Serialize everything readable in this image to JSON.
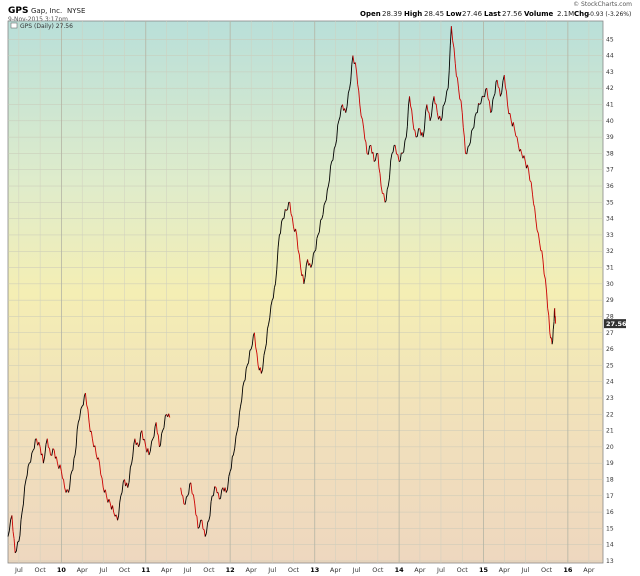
{
  "header": {
    "symbol": "GPS",
    "company": "Gap, Inc.",
    "exchange": "NYSE",
    "timestamp": "9-Nov-2015 3:17pm",
    "watermark": "© StockCharts.com",
    "open_label": "Open",
    "open_value": "28.39",
    "high_label": "High",
    "high_value": "28.45",
    "low_label": "Low",
    "low_value": "27.46",
    "last_label": "Last",
    "last_value": "27.56",
    "volume_label": "Volume",
    "volume_value": "2.1M",
    "chg_label": "Chg",
    "chg_value": "-0.93 (-3.26%)"
  },
  "legend": {
    "label": "GPS (Daily) 27.56"
  },
  "colors": {
    "up": "#000000",
    "down": "#cc0000",
    "last_tag": "#333333",
    "gradient": [
      "#b8dfd8",
      "#e8f0c8",
      "#f5ecb0",
      "#f0d8b8"
    ]
  },
  "chart_data": {
    "type": "line",
    "title": "GPS Gap, Inc. NYSE",
    "xlabel": "",
    "ylabel": "",
    "ylim": [
      13,
      46
    ],
    "y_ticks": [
      13,
      14,
      15,
      16,
      17,
      18,
      19,
      20,
      21,
      22,
      23,
      24,
      25,
      26,
      27,
      28,
      29,
      30,
      31,
      32,
      33,
      34,
      35,
      36,
      37,
      38,
      39,
      40,
      41,
      42,
      43,
      44,
      45
    ],
    "x_ticks": [
      {
        "label": "Jul",
        "date": "2009-07-01"
      },
      {
        "label": "Oct",
        "date": "2009-10-01"
      },
      {
        "label": "10",
        "date": "2010-01-01",
        "bold": true
      },
      {
        "label": "Apr",
        "date": "2010-04-01"
      },
      {
        "label": "Jul",
        "date": "2010-07-01"
      },
      {
        "label": "Oct",
        "date": "2010-10-01"
      },
      {
        "label": "11",
        "date": "2011-01-01",
        "bold": true
      },
      {
        "label": "Apr",
        "date": "2011-04-01"
      },
      {
        "label": "Jul",
        "date": "2011-07-01"
      },
      {
        "label": "Oct",
        "date": "2011-10-01"
      },
      {
        "label": "12",
        "date": "2012-01-01",
        "bold": true
      },
      {
        "label": "Apr",
        "date": "2012-04-01"
      },
      {
        "label": "Jul",
        "date": "2012-07-01"
      },
      {
        "label": "Oct",
        "date": "2012-10-01"
      },
      {
        "label": "13",
        "date": "2013-01-01",
        "bold": true
      },
      {
        "label": "Apr",
        "date": "2013-04-01"
      },
      {
        "label": "Jul",
        "date": "2013-07-01"
      },
      {
        "label": "Oct",
        "date": "2013-10-01"
      },
      {
        "label": "14",
        "date": "2014-01-01",
        "bold": true
      },
      {
        "label": "Apr",
        "date": "2014-04-01"
      },
      {
        "label": "Jul",
        "date": "2014-07-01"
      },
      {
        "label": "Oct",
        "date": "2014-10-01"
      },
      {
        "label": "15",
        "date": "2015-01-01",
        "bold": true
      },
      {
        "label": "Apr",
        "date": "2015-04-01"
      },
      {
        "label": "Jul",
        "date": "2015-07-01"
      },
      {
        "label": "Oct",
        "date": "2015-10-01"
      },
      {
        "label": "16",
        "date": "2016-01-01",
        "bold": true
      },
      {
        "label": "Apr",
        "date": "2016-04-01"
      }
    ],
    "x_start": "2009-05-15",
    "x_end": "2016-06-01",
    "last_price": 27.56,
    "series": [
      {
        "points": [
          [
            "2009-05-15",
            14.5
          ],
          [
            "2009-06-01",
            15.8
          ],
          [
            "2009-06-15",
            13.5
          ],
          [
            "2009-07-01",
            14.2
          ],
          [
            "2009-07-15",
            16.0
          ],
          [
            "2009-08-01",
            18.0
          ],
          [
            "2009-08-15",
            19.0
          ],
          [
            "2009-09-01",
            19.8
          ],
          [
            "2009-09-15",
            20.5
          ],
          [
            "2009-10-01",
            20.0
          ],
          [
            "2009-10-15",
            19.0
          ],
          [
            "2009-11-01",
            20.5
          ],
          [
            "2009-11-15",
            19.5
          ],
          [
            "2009-12-01",
            19.8
          ],
          [
            "2009-12-15",
            19.0
          ],
          [
            "2010-01-01",
            18.5
          ],
          [
            "2010-01-15",
            17.5
          ],
          [
            "2010-02-01",
            17.2
          ],
          [
            "2010-02-15",
            18.5
          ],
          [
            "2010-03-01",
            19.5
          ],
          [
            "2010-03-15",
            21.5
          ],
          [
            "2010-04-01",
            22.5
          ],
          [
            "2010-04-15",
            23.3
          ],
          [
            "2010-05-01",
            21.5
          ],
          [
            "2010-05-15",
            20.5
          ],
          [
            "2010-06-01",
            19.5
          ],
          [
            "2010-06-15",
            19.0
          ],
          [
            "2010-07-01",
            17.5
          ],
          [
            "2010-07-15",
            17.0
          ],
          [
            "2010-08-01",
            16.5
          ],
          [
            "2010-08-15",
            16.0
          ],
          [
            "2010-09-01",
            15.5
          ],
          [
            "2010-09-15",
            17.0
          ],
          [
            "2010-10-01",
            18.0
          ],
          [
            "2010-10-15",
            17.5
          ],
          [
            "2010-11-01",
            19.0
          ],
          [
            "2010-11-15",
            20.5
          ],
          [
            "2010-12-01",
            20.0
          ],
          [
            "2010-12-15",
            21.0
          ],
          [
            "2011-01-01",
            20.0
          ],
          [
            "2011-01-15",
            19.5
          ],
          [
            "2011-02-01",
            20.5
          ],
          [
            "2011-02-15",
            21.5
          ],
          [
            "2011-03-01",
            20.0
          ],
          [
            "2011-03-15",
            21.0
          ],
          [
            "2011-04-01",
            22.0
          ],
          [
            "2011-04-15",
            21.8
          ]
        ]
      },
      {
        "points": [
          [
            "2011-06-01",
            17.5
          ],
          [
            "2011-06-15",
            16.5
          ],
          [
            "2011-07-01",
            17.0
          ],
          [
            "2011-07-15",
            17.8
          ],
          [
            "2011-08-01",
            16.5
          ],
          [
            "2011-08-15",
            15.0
          ],
          [
            "2011-09-01",
            15.5
          ],
          [
            "2011-09-15",
            14.5
          ],
          [
            "2011-10-01",
            15.5
          ],
          [
            "2011-10-15",
            17.0
          ],
          [
            "2011-11-01",
            17.5
          ],
          [
            "2011-11-15",
            16.8
          ],
          [
            "2011-12-01",
            17.5
          ],
          [
            "2011-12-15",
            17.2
          ],
          [
            "2012-01-01",
            18.5
          ],
          [
            "2012-01-15",
            19.5
          ],
          [
            "2012-02-01",
            21.0
          ],
          [
            "2012-02-15",
            22.5
          ],
          [
            "2012-03-01",
            24.0
          ],
          [
            "2012-03-15",
            25.0
          ],
          [
            "2012-04-01",
            26.0
          ],
          [
            "2012-04-15",
            27.0
          ],
          [
            "2012-05-01",
            25.0
          ],
          [
            "2012-05-15",
            24.5
          ],
          [
            "2012-06-01",
            26.0
          ],
          [
            "2012-06-15",
            27.5
          ],
          [
            "2012-07-01",
            29.0
          ],
          [
            "2012-07-15",
            30.0
          ],
          [
            "2012-08-01",
            33.0
          ],
          [
            "2012-08-15",
            34.0
          ],
          [
            "2012-09-01",
            34.5
          ],
          [
            "2012-09-15",
            35.0
          ],
          [
            "2012-10-01",
            33.5
          ],
          [
            "2012-10-15",
            33.0
          ],
          [
            "2012-11-01",
            31.0
          ],
          [
            "2012-11-15",
            30.0
          ],
          [
            "2012-12-01",
            31.5
          ],
          [
            "2012-12-15",
            31.0
          ],
          [
            "2013-01-01",
            32.0
          ],
          [
            "2013-01-15",
            33.0
          ],
          [
            "2013-02-01",
            34.0
          ],
          [
            "2013-02-15",
            35.0
          ],
          [
            "2013-03-01",
            36.0
          ],
          [
            "2013-03-15",
            37.5
          ],
          [
            "2013-04-01",
            38.5
          ],
          [
            "2013-04-15",
            40.0
          ],
          [
            "2013-05-01",
            41.0
          ],
          [
            "2013-05-15",
            40.5
          ],
          [
            "2013-06-01",
            42.0
          ],
          [
            "2013-06-15",
            44.0
          ],
          [
            "2013-07-01",
            43.0
          ],
          [
            "2013-07-15",
            41.0
          ],
          [
            "2013-08-01",
            39.5
          ],
          [
            "2013-08-15",
            38.0
          ],
          [
            "2013-09-01",
            38.5
          ],
          [
            "2013-09-15",
            37.5
          ],
          [
            "2013-10-01",
            38.0
          ],
          [
            "2013-10-15",
            36.0
          ],
          [
            "2013-11-01",
            35.0
          ],
          [
            "2013-11-15",
            36.0
          ],
          [
            "2013-12-01",
            38.0
          ],
          [
            "2013-12-15",
            38.5
          ],
          [
            "2014-01-01",
            37.5
          ],
          [
            "2014-01-15",
            38.0
          ],
          [
            "2014-02-01",
            39.0
          ],
          [
            "2014-02-15",
            41.5
          ],
          [
            "2014-03-01",
            40.0
          ],
          [
            "2014-03-15",
            39.0
          ],
          [
            "2014-04-01",
            39.5
          ],
          [
            "2014-04-15",
            39.0
          ],
          [
            "2014-05-01",
            41.0
          ],
          [
            "2014-05-15",
            40.0
          ],
          [
            "2014-06-01",
            41.5
          ],
          [
            "2014-06-15",
            40.5
          ],
          [
            "2014-07-01",
            40.0
          ],
          [
            "2014-07-15",
            41.0
          ],
          [
            "2014-08-01",
            42.0
          ],
          [
            "2014-08-15",
            45.8
          ],
          [
            "2014-09-01",
            43.5
          ],
          [
            "2014-09-15",
            42.0
          ],
          [
            "2014-10-01",
            40.5
          ],
          [
            "2014-10-15",
            38.0
          ],
          [
            "2014-11-01",
            38.5
          ],
          [
            "2014-11-15",
            39.5
          ],
          [
            "2014-12-01",
            40.5
          ],
          [
            "2014-12-15",
            41.0
          ],
          [
            "2015-01-01",
            41.5
          ],
          [
            "2015-01-15",
            42.0
          ],
          [
            "2015-02-01",
            40.5
          ],
          [
            "2015-02-15",
            41.5
          ],
          [
            "2015-03-01",
            42.5
          ],
          [
            "2015-03-15",
            41.5
          ],
          [
            "2015-04-01",
            42.8
          ],
          [
            "2015-04-15",
            41.0
          ],
          [
            "2015-05-01",
            40.0
          ],
          [
            "2015-05-15",
            39.5
          ],
          [
            "2015-06-01",
            38.5
          ],
          [
            "2015-06-15",
            38.0
          ],
          [
            "2015-07-01",
            37.5
          ],
          [
            "2015-07-15",
            37.0
          ],
          [
            "2015-08-01",
            35.5
          ],
          [
            "2015-08-15",
            34.0
          ],
          [
            "2015-09-01",
            32.5
          ],
          [
            "2015-09-15",
            31.5
          ],
          [
            "2015-10-01",
            29.5
          ],
          [
            "2015-10-15",
            27.0
          ],
          [
            "2015-10-25",
            26.3
          ],
          [
            "2015-11-01",
            27.5
          ],
          [
            "2015-11-05",
            28.5
          ],
          [
            "2015-11-09",
            27.56
          ]
        ]
      }
    ]
  }
}
